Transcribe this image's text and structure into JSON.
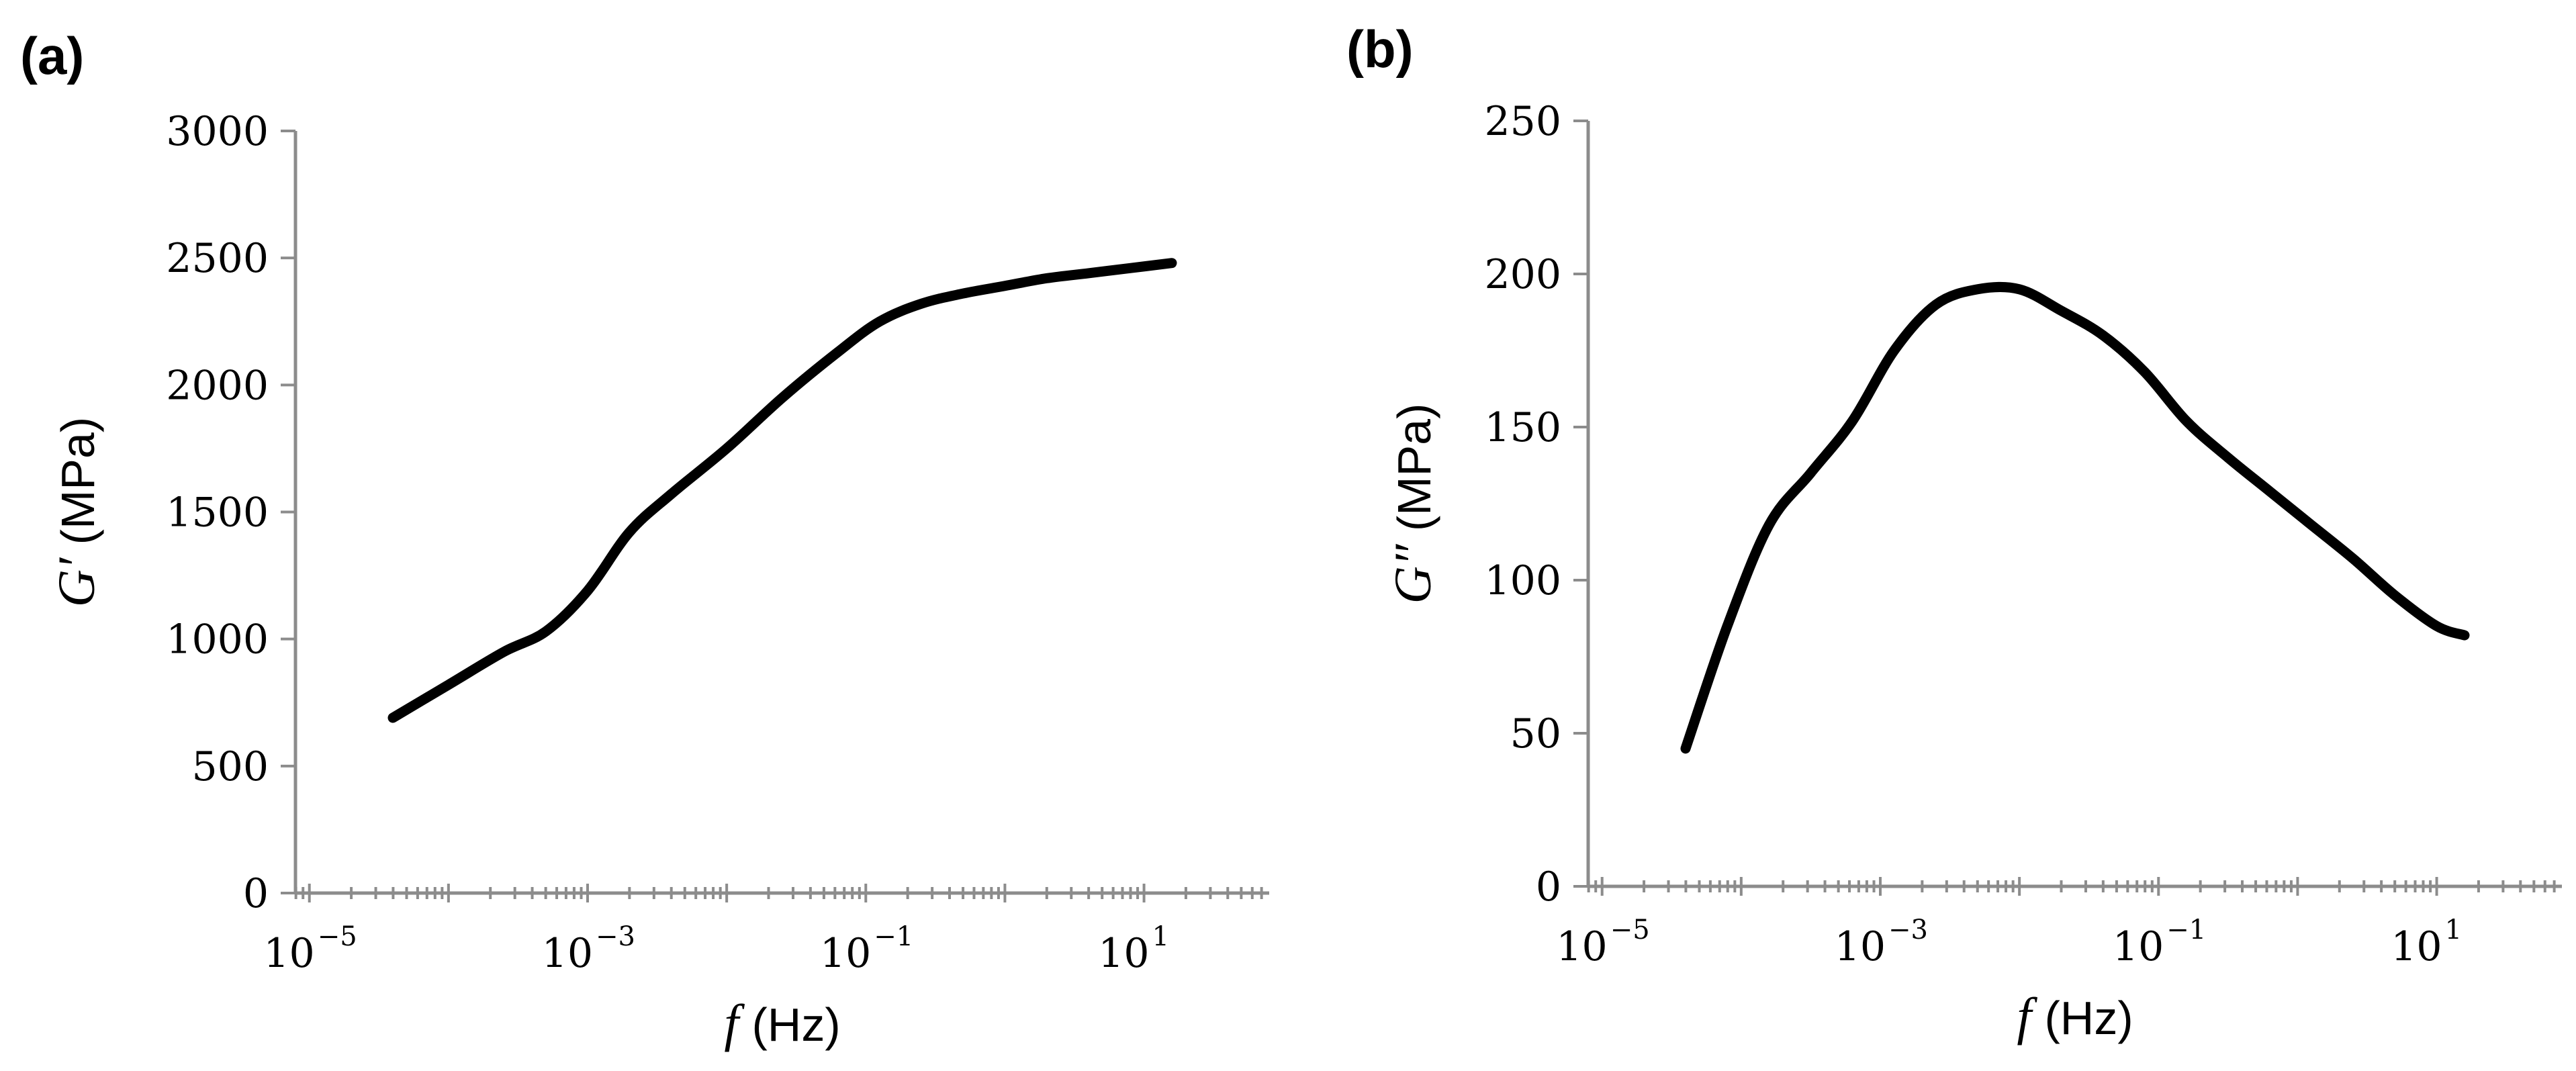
{
  "chart_data": [
    {
      "panel_label": "(a)",
      "type": "line",
      "ylabel_var": "G′",
      "ylabel_unit": " (MPa)",
      "xlabel_var": "f",
      "xlabel_unit": " (Hz)",
      "xscale": "log",
      "xlim_log10": [
        -5.1,
        1.9
      ],
      "ylim": [
        0,
        3000
      ],
      "yticks": [
        "0",
        "500",
        "1000",
        "1500",
        "2000",
        "2500",
        "3000"
      ],
      "xtick_exponents": [
        "−5",
        "−3",
        "−1",
        "1"
      ],
      "xtick_base": "10",
      "series": [
        {
          "name": "G′",
          "log10_x": [
            -4.4,
            -4.0,
            -3.6,
            -3.3,
            -3.0,
            -2.7,
            -2.4,
            -2.0,
            -1.6,
            -1.2,
            -0.9,
            -0.6,
            -0.3,
            0.0,
            0.3,
            0.6,
            0.9,
            1.2
          ],
          "y": [
            690,
            820,
            950,
            1030,
            1190,
            1420,
            1570,
            1750,
            1950,
            2130,
            2250,
            2320,
            2360,
            2390,
            2420,
            2440,
            2460,
            2480
          ]
        }
      ]
    },
    {
      "panel_label": "(b)",
      "type": "line",
      "ylabel_var": "G″",
      "ylabel_unit": " (MPa)",
      "xlabel_var": "f",
      "xlabel_unit": " (Hz)",
      "xscale": "log",
      "xlim_log10": [
        -5.1,
        1.9
      ],
      "ylim": [
        0,
        250
      ],
      "yticks": [
        "0",
        "50",
        "100",
        "150",
        "200",
        "250"
      ],
      "xtick_exponents": [
        "−5",
        "−3",
        "−1",
        "1"
      ],
      "xtick_base": "10",
      "series": [
        {
          "name": "G″",
          "log10_x": [
            -4.4,
            -4.1,
            -3.8,
            -3.5,
            -3.2,
            -2.9,
            -2.6,
            -2.3,
            -2.0,
            -1.7,
            -1.4,
            -1.1,
            -0.8,
            -0.5,
            -0.2,
            0.1,
            0.4,
            0.7,
            1.0,
            1.2
          ],
          "y": [
            45,
            85,
            118,
            135,
            152,
            175,
            190,
            195,
            195,
            188,
            180,
            168,
            152,
            140,
            129,
            118,
            107,
            95,
            85,
            82
          ]
        }
      ]
    }
  ]
}
